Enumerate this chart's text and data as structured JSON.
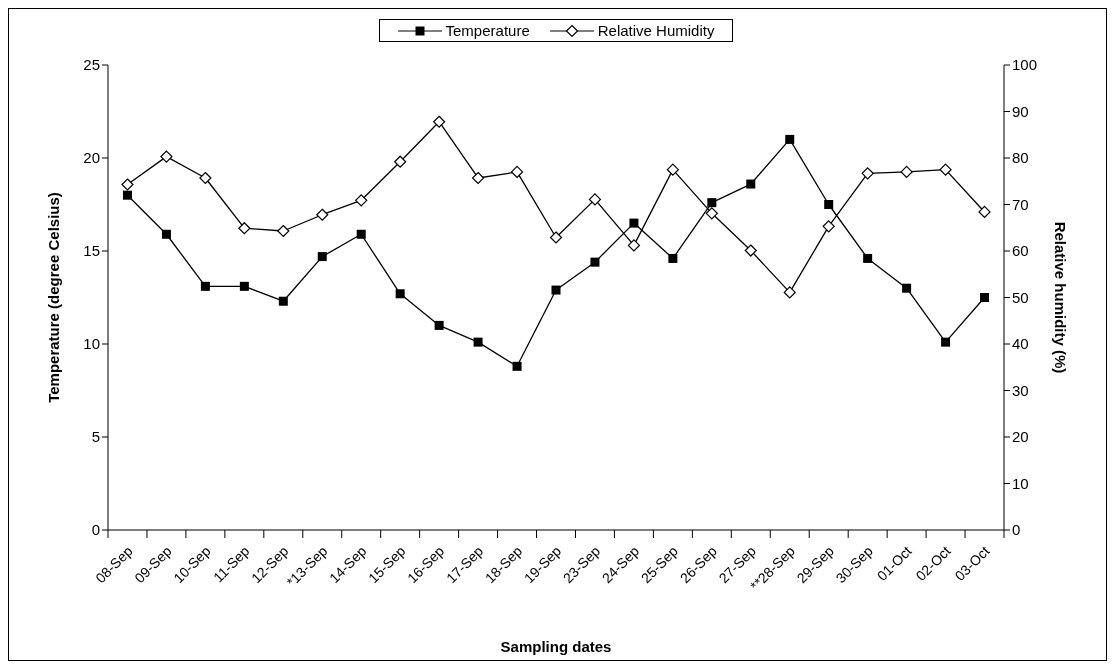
{
  "chart_data": {
    "type": "line",
    "xlabel": "Sampling dates",
    "ylabel": "Temperature (degree Celsius)",
    "y2label": "Relative humidity (%)",
    "categories": [
      "08-Sep",
      "09-Sep",
      "10-Sep",
      "11-Sep",
      "12-Sep",
      "*13-Sep",
      "14-Sep",
      "15-Sep",
      "16-Sep",
      "17-Sep",
      "18-Sep",
      "19-Sep",
      "23-Sep",
      "24-Sep",
      "25-Sep",
      "26-Sep",
      "27-Sep",
      "**28-Sep",
      "29-Sep",
      "30-Sep",
      "01-Oct",
      "02-Oct",
      "03-Oct"
    ],
    "series": [
      {
        "name": "Temperature",
        "color": "#000000",
        "marker": "square",
        "values": [
          18.0,
          15.9,
          13.1,
          13.1,
          12.3,
          14.7,
          15.9,
          12.7,
          11.0,
          10.1,
          8.8,
          12.9,
          14.4,
          16.5,
          14.6,
          17.6,
          18.6,
          21.0,
          17.5,
          14.6,
          13.0,
          10.1,
          12.5
        ]
      },
      {
        "name": "Relative Humidity",
        "color": "#000000",
        "marker": "diamond",
        "axis": "y2",
        "values": [
          74.3,
          80.3,
          75.7,
          64.9,
          64.3,
          67.8,
          70.9,
          79.2,
          87.8,
          75.7,
          77.0,
          62.9,
          71.1,
          61.2,
          77.5,
          68.1,
          60.1,
          51.1,
          65.3,
          76.7,
          77.0,
          77.5,
          68.4
        ]
      }
    ],
    "ylim": [
      0,
      25
    ],
    "yticks": [
      0,
      5,
      10,
      15,
      20,
      25
    ],
    "y2lim": [
      0,
      100
    ],
    "y2ticks": [
      0,
      10,
      20,
      30,
      40,
      50,
      60,
      70,
      80,
      90,
      100
    ],
    "grid": false,
    "legend": "top"
  }
}
